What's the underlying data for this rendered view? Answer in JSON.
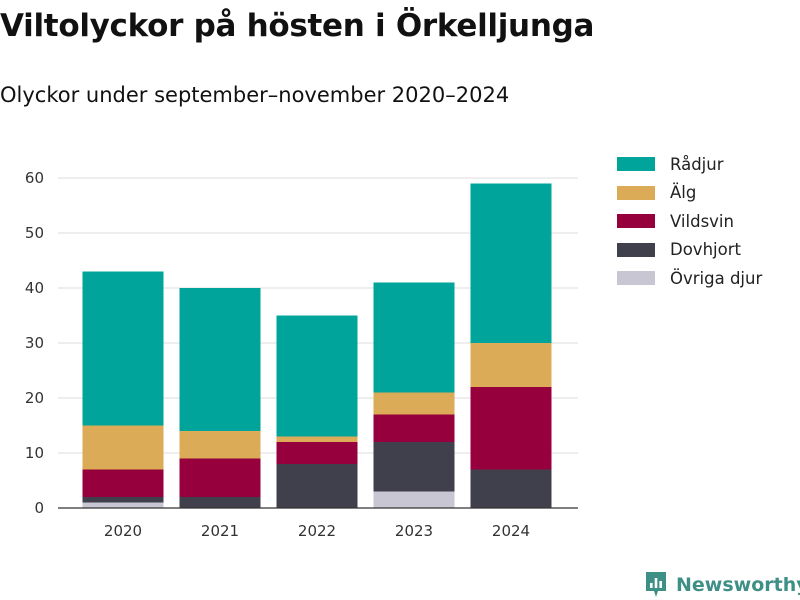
{
  "title": "Viltolyckor på hösten i Örkelljunga",
  "subtitle": "Olyckor under september–november 2020–2024",
  "brand": {
    "name": "Newsworthy",
    "icon": "bar-chart-logo-icon",
    "color": "#3e8f86"
  },
  "chart_data": {
    "type": "bar",
    "stacked": true,
    "categories": [
      "2020",
      "2021",
      "2022",
      "2023",
      "2024"
    ],
    "series": [
      {
        "name": "Övriga djur",
        "color": "#c9c6d3",
        "values": [
          1,
          0,
          0,
          3,
          0
        ]
      },
      {
        "name": "Dovhjort",
        "color": "#403f4c",
        "values": [
          1,
          2,
          8,
          9,
          7
        ]
      },
      {
        "name": "Vildsvin",
        "color": "#96003c",
        "values": [
          5,
          7,
          4,
          5,
          15
        ]
      },
      {
        "name": "Älg",
        "color": "#dbab57",
        "values": [
          8,
          5,
          1,
          4,
          8
        ]
      },
      {
        "name": "Rådjur",
        "color": "#00a49a",
        "values": [
          28,
          26,
          22,
          20,
          29
        ]
      }
    ],
    "legend_order": [
      "Rådjur",
      "Älg",
      "Vildsvin",
      "Dovhjort",
      "Övriga djur"
    ],
    "yticks": [
      0,
      10,
      20,
      30,
      40,
      50,
      60
    ],
    "ylim": [
      0,
      65
    ],
    "grid": true,
    "legend_position": "right",
    "xlabel": "",
    "ylabel": ""
  }
}
